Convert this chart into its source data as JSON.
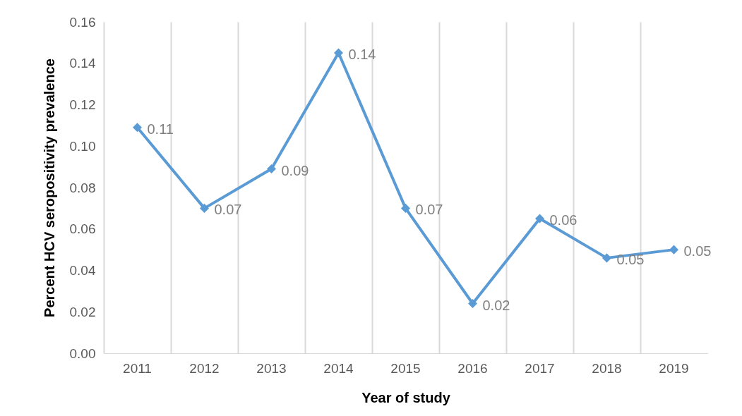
{
  "chart_data": {
    "type": "line",
    "xlabel": "Year of study",
    "ylabel": "Percent HCV seropositivity prevalence",
    "categories": [
      "2011",
      "2012",
      "2013",
      "2014",
      "2015",
      "2016",
      "2017",
      "2018",
      "2019"
    ],
    "series": [
      {
        "color": "#5b9bd5",
        "values": [
          0.109,
          0.07,
          0.089,
          0.145,
          0.07,
          0.024,
          0.065,
          0.046,
          0.05
        ],
        "value_labels": [
          "0.11",
          "0.07",
          "0.09",
          "0.14",
          "0.07",
          "0.02",
          "0.06",
          "0.05",
          "0.05"
        ]
      }
    ],
    "ylim": [
      0,
      0.16
    ],
    "yticks": [
      {
        "value": 0,
        "label": "0.00"
      },
      {
        "value": 0.02,
        "label": "0.02"
      },
      {
        "value": 0.04,
        "label": "0.04"
      },
      {
        "value": 0.06,
        "label": "0.06"
      },
      {
        "value": 0.08,
        "label": "0.08"
      },
      {
        "value": 0.1,
        "label": "0.10"
      },
      {
        "value": 0.12,
        "label": "0.12"
      },
      {
        "value": 0.14,
        "label": "0.14"
      },
      {
        "value": 0.16,
        "label": "0.16"
      }
    ],
    "grid": "x",
    "marker": "diamond",
    "line_style": "solid"
  }
}
